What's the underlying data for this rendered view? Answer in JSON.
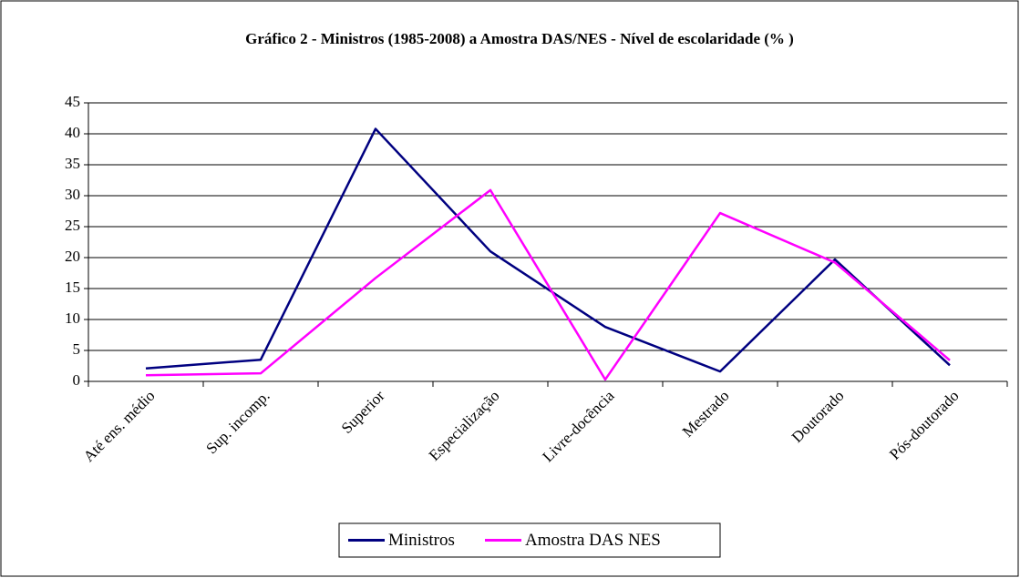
{
  "chart_data": {
    "type": "line",
    "title": "Gráfico 2 - Ministros (1985-2008) a Amostra DAS/NES - Nível de escolaridade (% )",
    "categories": [
      "Até ens. médio",
      "Sup. incomp.",
      "Superior",
      "Especialização",
      "Livre-docência",
      "Mestrado",
      "Doutorado",
      "Pós-doutorado"
    ],
    "series": [
      {
        "name": "Ministros",
        "color": "#000080",
        "values": [
          2.1,
          3.5,
          40.8,
          21,
          8.8,
          1.6,
          19.7,
          2.6
        ]
      },
      {
        "name": "Amostra DAS NES",
        "color": "#ff00ff",
        "values": [
          1.0,
          1.3,
          16.7,
          30.9,
          0.3,
          27.2,
          19.2,
          3.4
        ]
      }
    ],
    "ylim": [
      0,
      45
    ],
    "yticks": [
      0,
      5,
      10,
      15,
      20,
      25,
      30,
      35,
      40,
      45
    ],
    "grid": true,
    "legend": "bottom"
  }
}
